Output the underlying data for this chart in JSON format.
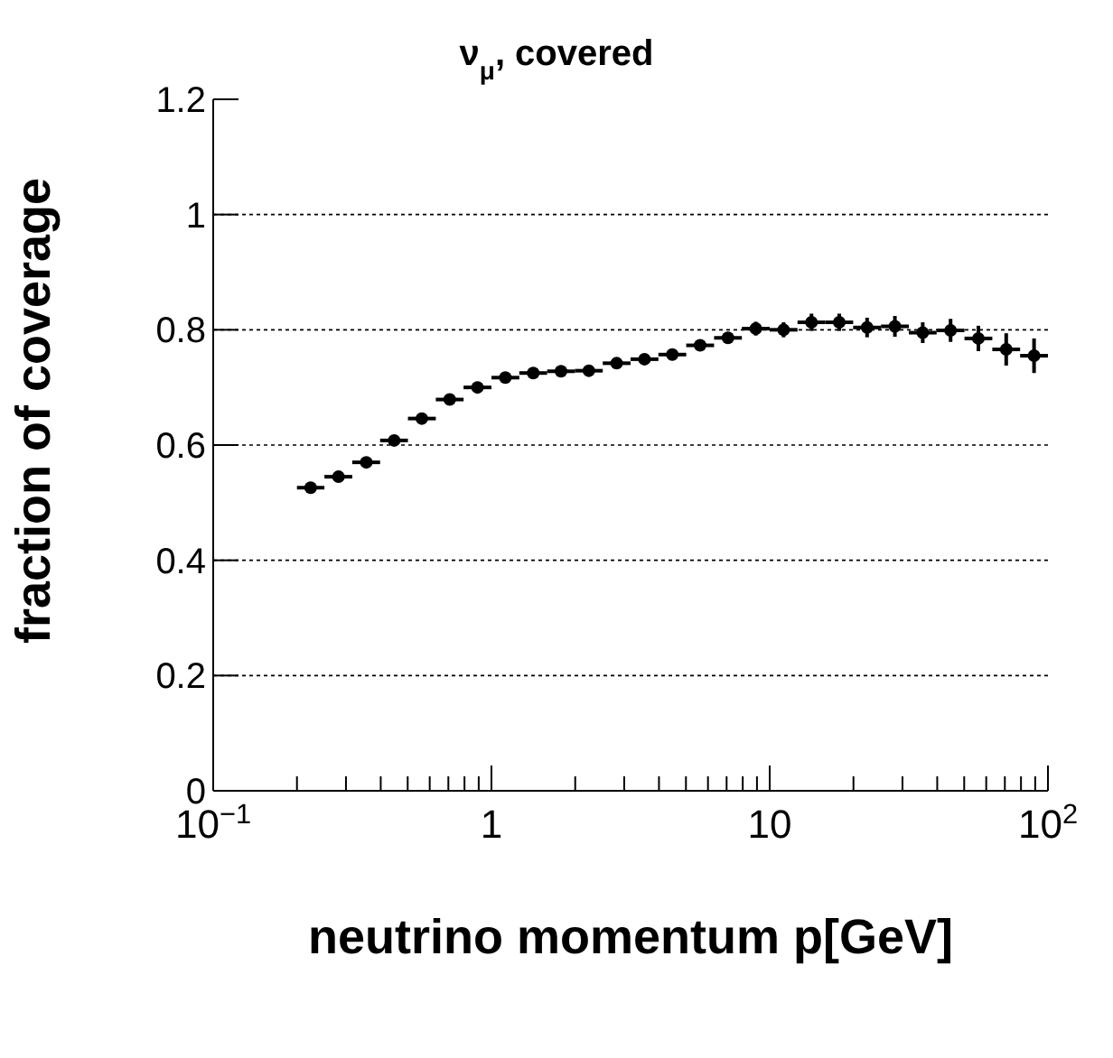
{
  "chart_data": {
    "type": "scatter",
    "title": "ν$_{μ}$, covered",
    "xlabel": "neutrino momentum p[GeV]",
    "ylabel": "fraction of coverage",
    "x": [
      0.224,
      0.282,
      0.355,
      0.447,
      0.562,
      0.708,
      0.891,
      1.122,
      1.413,
      1.778,
      2.239,
      2.818,
      3.548,
      4.467,
      5.623,
      7.079,
      8.913,
      11.22,
      14.13,
      17.78,
      22.39,
      28.18,
      35.48,
      44.67,
      56.23,
      70.79,
      89.13
    ],
    "values": [
      0.526,
      0.545,
      0.57,
      0.608,
      0.646,
      0.679,
      0.7,
      0.717,
      0.725,
      0.728,
      0.729,
      0.742,
      0.749,
      0.757,
      0.773,
      0.786,
      0.802,
      0.8,
      0.813,
      0.813,
      0.804,
      0.806,
      0.795,
      0.799,
      0.785,
      0.766,
      0.755
    ],
    "errors": [
      0.004,
      0.004,
      0.004,
      0.004,
      0.005,
      0.005,
      0.005,
      0.005,
      0.005,
      0.005,
      0.005,
      0.006,
      0.006,
      0.007,
      0.008,
      0.01,
      0.012,
      0.013,
      0.015,
      0.015,
      0.017,
      0.018,
      0.018,
      0.02,
      0.022,
      0.028,
      0.03
    ],
    "xerrors": [
      [
        0.2,
        0.251
      ],
      [
        0.251,
        0.316
      ],
      [
        0.316,
        0.398
      ],
      [
        0.398,
        0.501
      ],
      [
        0.501,
        0.631
      ],
      [
        0.631,
        0.794
      ],
      [
        0.794,
        1.0
      ],
      [
        1.0,
        1.259
      ],
      [
        1.259,
        1.585
      ],
      [
        1.585,
        1.995
      ],
      [
        1.995,
        2.512
      ],
      [
        2.512,
        3.162
      ],
      [
        3.162,
        3.981
      ],
      [
        3.981,
        5.012
      ],
      [
        5.012,
        6.31
      ],
      [
        6.31,
        7.943
      ],
      [
        7.943,
        10.0
      ],
      [
        10.0,
        12.59
      ],
      [
        12.59,
        15.85
      ],
      [
        15.85,
        19.95
      ],
      [
        19.95,
        25.12
      ],
      [
        25.12,
        31.62
      ],
      [
        31.62,
        39.81
      ],
      [
        39.81,
        50.12
      ],
      [
        50.12,
        63.1
      ],
      [
        63.1,
        79.43
      ],
      [
        79.43,
        100.0
      ]
    ],
    "color": "#000000",
    "marker": "circle",
    "log": "x",
    "grid": "y",
    "xlim": [
      0.1,
      100
    ],
    "ylim": [
      0,
      1.2
    ],
    "xticks": [
      {
        "value": 0.1,
        "label": "10$^{−1}$"
      },
      {
        "value": 0.2,
        "label": null
      },
      {
        "value": 0.3,
        "label": null
      },
      {
        "value": 0.4,
        "label": null
      },
      {
        "value": 0.5,
        "label": null
      },
      {
        "value": 0.6,
        "label": null
      },
      {
        "value": 0.7,
        "label": null
      },
      {
        "value": 0.8,
        "label": null
      },
      {
        "value": 0.9,
        "label": null
      },
      1,
      {
        "value": 2,
        "label": null
      },
      {
        "value": 3,
        "label": null
      },
      {
        "value": 4,
        "label": null
      },
      {
        "value": 5,
        "label": null
      },
      {
        "value": 6,
        "label": null
      },
      {
        "value": 7,
        "label": null
      },
      {
        "value": 8,
        "label": null
      },
      {
        "value": 9,
        "label": null
      },
      10,
      {
        "value": 20,
        "label": null
      },
      {
        "value": 30,
        "label": null
      },
      {
        "value": 40,
        "label": null
      },
      {
        "value": 50,
        "label": null
      },
      {
        "value": 60,
        "label": null
      },
      {
        "value": 70,
        "label": null
      },
      {
        "value": 80,
        "label": null
      },
      {
        "value": 90,
        "label": null
      },
      {
        "value": 100,
        "label": "10$^{2}$"
      }
    ],
    "yticks": [
      0,
      0.2,
      0.4,
      0.6,
      0.8,
      1,
      1.2
    ]
  }
}
